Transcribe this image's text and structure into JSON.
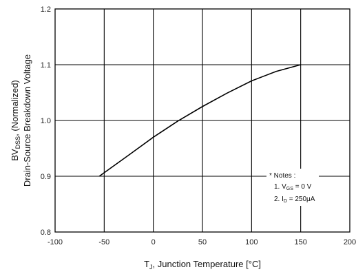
{
  "chart_data": {
    "type": "line",
    "xlabel": {
      "main": "T",
      "sub": "J",
      "rest": ", Junction Temperature [°C]"
    },
    "ylabel": {
      "line1_main": "BV",
      "line1_sub": "DSS",
      "line1_rest": ", (Normalized)",
      "line2": "Drain-Source Breakdown Voltage"
    },
    "xlim": [
      -100,
      200
    ],
    "ylim": [
      0.8,
      1.2
    ],
    "x_ticks": [
      "-100",
      "-50",
      "0",
      "50",
      "100",
      "150",
      "200"
    ],
    "y_ticks": [
      "0.8",
      "0.9",
      "1.0",
      "1.1",
      "1.2"
    ],
    "grid": true,
    "series": [
      {
        "x": [
          -55,
          -25,
          0,
          25,
          50,
          75,
          100,
          125,
          150
        ],
        "y": [
          0.9,
          0.938,
          0.97,
          0.999,
          1.025,
          1.049,
          1.071,
          1.088,
          1.1
        ]
      }
    ],
    "notes": {
      "title": "* Notes :",
      "line1": {
        "prefix": "1. V",
        "sub": "GS",
        "rest": " = 0 V"
      },
      "line2": {
        "prefix": "2. I",
        "sub": "D",
        "rest": " = 250μA"
      }
    }
  }
}
